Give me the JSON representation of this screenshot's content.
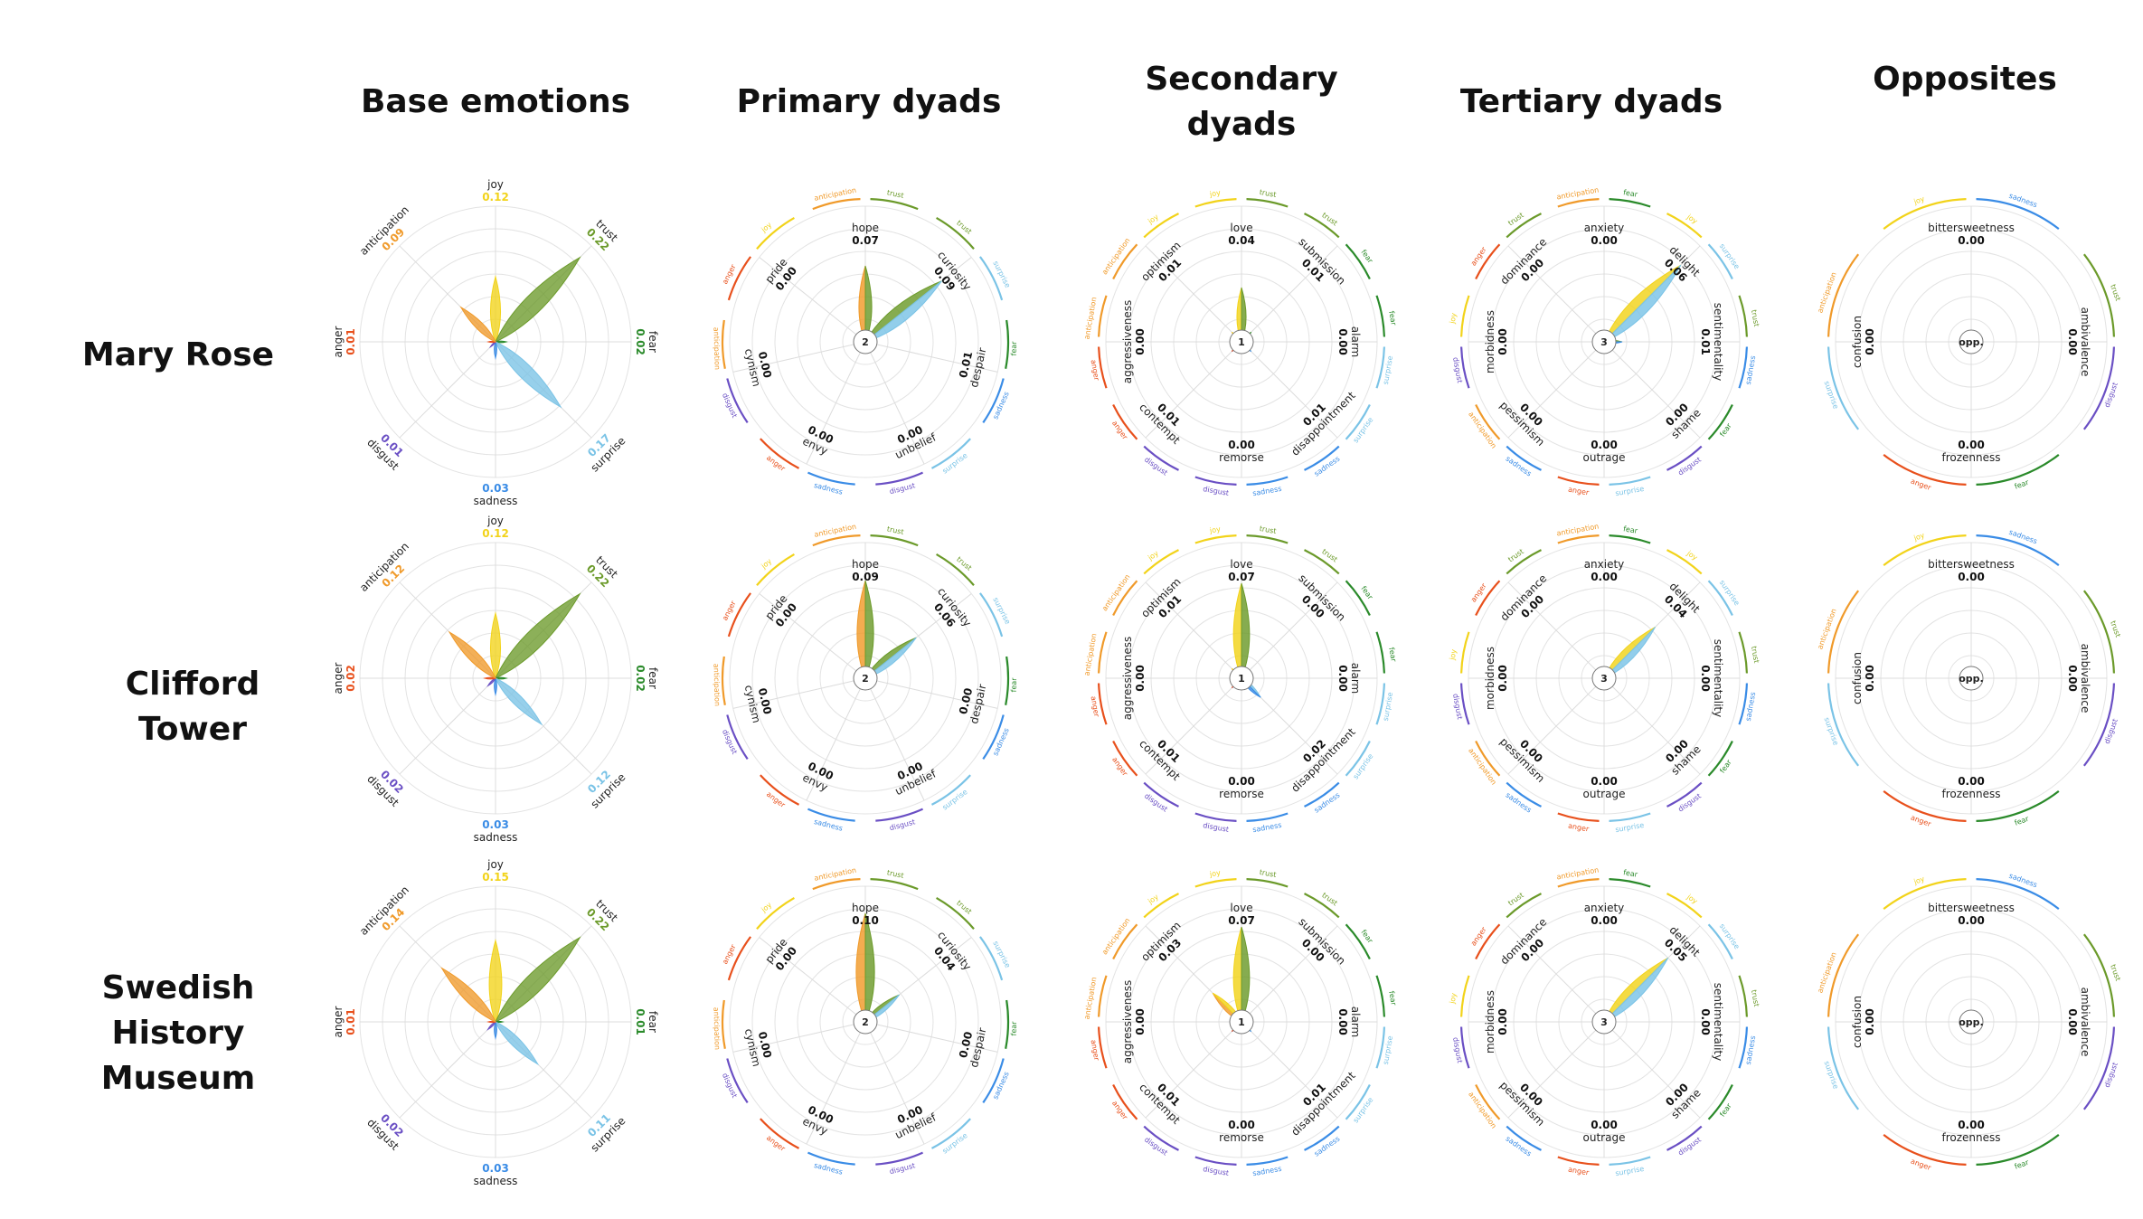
{
  "column_titles": [
    "Base emotions",
    "Primary dyads",
    "Secondary\ndyads",
    "Tertiary dyads",
    "Opposites"
  ],
  "row_titles": [
    "Mary Rose",
    "Clifford\nTower",
    "Swedish\nHistory\nMuseum"
  ],
  "colors": {
    "joy": "#f2d31a",
    "trust": "#6b9a2a",
    "fear": "#2a8a2a",
    "surprise": "#7ac3e6",
    "sadness": "#3a8ce6",
    "disgust": "#6a4fc4",
    "anger": "#e8501c",
    "anticipation": "#f09a2a"
  },
  "center_labels": [
    "",
    "2",
    "1",
    "3",
    "opp."
  ],
  "chart_data": [
    {
      "type": "radar",
      "panel": "Mary Rose / Base emotions",
      "labels": [
        "joy",
        "trust",
        "fear",
        "surprise",
        "sadness",
        "disgust",
        "anger",
        "anticipation"
      ],
      "values": [
        0.12,
        0.22,
        0.02,
        0.17,
        0.03,
        0.01,
        0.01,
        0.09
      ]
    },
    {
      "type": "radar",
      "panel": "Mary Rose / Primary dyads",
      "labels": [
        "hope",
        "curiosity",
        "despair",
        "unbelief",
        "envy",
        "cynism",
        "pride"
      ],
      "values": [
        0.07,
        0.09,
        0.01,
        0.0,
        0.0,
        0.0,
        0.0
      ]
    },
    {
      "type": "radar",
      "panel": "Mary Rose / Secondary dyads",
      "labels": [
        "love",
        "submission",
        "alarm",
        "disappointment",
        "remorse",
        "contempt",
        "aggressiveness",
        "optimism"
      ],
      "values": [
        0.04,
        0.01,
        0.0,
        0.01,
        0.0,
        0.01,
        0.0,
        0.01
      ]
    },
    {
      "type": "radar",
      "panel": "Mary Rose / Tertiary dyads",
      "labels": [
        "anxiety",
        "delight",
        "sentimentality",
        "shame",
        "outrage",
        "pessimism",
        "morbidness",
        "dominance"
      ],
      "values": [
        0.0,
        0.06,
        0.01,
        0.0,
        0.0,
        0.0,
        0.0,
        0.0
      ]
    },
    {
      "type": "radar",
      "panel": "Mary Rose / Opposites",
      "labels": [
        "bittersweetness",
        "ambivalence",
        "frozenness",
        "confusion"
      ],
      "values": [
        0.0,
        0.0,
        0.0,
        0.0
      ]
    },
    {
      "type": "radar",
      "panel": "Clifford Tower / Base emotions",
      "labels": [
        "joy",
        "trust",
        "fear",
        "surprise",
        "sadness",
        "disgust",
        "anger",
        "anticipation"
      ],
      "values": [
        0.12,
        0.22,
        0.02,
        0.12,
        0.03,
        0.02,
        0.02,
        0.12
      ]
    },
    {
      "type": "radar",
      "panel": "Clifford Tower / Primary dyads",
      "labels": [
        "hope",
        "curiosity",
        "despair",
        "unbelief",
        "envy",
        "cynism",
        "pride"
      ],
      "values": [
        0.09,
        0.06,
        0.0,
        0.0,
        0.0,
        0.0,
        0.0
      ]
    },
    {
      "type": "radar",
      "panel": "Clifford Tower / Secondary dyads",
      "labels": [
        "love",
        "submission",
        "alarm",
        "disappointment",
        "remorse",
        "contempt",
        "aggressiveness",
        "optimism"
      ],
      "values": [
        0.07,
        0.0,
        0.0,
        0.02,
        0.0,
        0.01,
        0.0,
        0.01
      ]
    },
    {
      "type": "radar",
      "panel": "Clifford Tower / Tertiary dyads",
      "labels": [
        "anxiety",
        "delight",
        "sentimentality",
        "shame",
        "outrage",
        "pessimism",
        "morbidness",
        "dominance"
      ],
      "values": [
        0.0,
        0.04,
        0.0,
        0.0,
        0.0,
        0.0,
        0.0,
        0.0
      ]
    },
    {
      "type": "radar",
      "panel": "Clifford Tower / Opposites",
      "labels": [
        "bittersweetness",
        "ambivalence",
        "frozenness",
        "confusion"
      ],
      "values": [
        0.0,
        0.0,
        0.0,
        0.0
      ]
    },
    {
      "type": "radar",
      "panel": "Swedish History Museum / Base emotions",
      "labels": [
        "joy",
        "trust",
        "fear",
        "surprise",
        "sadness",
        "disgust",
        "anger",
        "anticipation"
      ],
      "values": [
        0.15,
        0.22,
        0.01,
        0.11,
        0.03,
        0.02,
        0.01,
        0.14
      ]
    },
    {
      "type": "radar",
      "panel": "Swedish History Museum / Primary dyads",
      "labels": [
        "hope",
        "curiosity",
        "despair",
        "unbelief",
        "envy",
        "cynism",
        "pride"
      ],
      "values": [
        0.1,
        0.04,
        0.0,
        0.0,
        0.0,
        0.0,
        0.0
      ]
    },
    {
      "type": "radar",
      "panel": "Swedish History Museum / Secondary dyads",
      "labels": [
        "love",
        "submission",
        "alarm",
        "disappointment",
        "remorse",
        "contempt",
        "aggressiveness",
        "optimism"
      ],
      "values": [
        0.07,
        0.0,
        0.0,
        0.01,
        0.0,
        0.01,
        0.0,
        0.03
      ]
    },
    {
      "type": "radar",
      "panel": "Swedish History Museum / Tertiary dyads",
      "labels": [
        "anxiety",
        "delight",
        "sentimentality",
        "shame",
        "outrage",
        "pessimism",
        "morbidness",
        "dominance"
      ],
      "values": [
        0.0,
        0.05,
        0.0,
        0.0,
        0.0,
        0.0,
        0.0,
        0.0
      ]
    },
    {
      "type": "radar",
      "panel": "Swedish History Museum / Opposites",
      "labels": [
        "bittersweetness",
        "ambivalence",
        "frozenness",
        "confusion"
      ],
      "values": [
        0.0,
        0.0,
        0.0,
        0.0
      ]
    }
  ],
  "dyad_components": {
    "hope": [
      "anticipation",
      "trust"
    ],
    "curiosity": [
      "trust",
      "surprise"
    ],
    "despair": [
      "fear",
      "sadness"
    ],
    "unbelief": [
      "surprise",
      "disgust"
    ],
    "envy": [
      "sadness",
      "anger"
    ],
    "cynism": [
      "disgust",
      "anticipation"
    ],
    "pride": [
      "anger",
      "joy"
    ],
    "love": [
      "joy",
      "trust"
    ],
    "submission": [
      "trust",
      "fear"
    ],
    "alarm": [
      "fear",
      "surprise"
    ],
    "disappointment": [
      "surprise",
      "sadness"
    ],
    "remorse": [
      "sadness",
      "disgust"
    ],
    "contempt": [
      "disgust",
      "anger"
    ],
    "aggressiveness": [
      "anger",
      "anticipation"
    ],
    "optimism": [
      "anticipation",
      "joy"
    ],
    "anxiety": [
      "anticipation",
      "fear"
    ],
    "delight": [
      "joy",
      "surprise"
    ],
    "sentimentality": [
      "trust",
      "sadness"
    ],
    "shame": [
      "fear",
      "disgust"
    ],
    "outrage": [
      "surprise",
      "anger"
    ],
    "pessimism": [
      "sadness",
      "anticipation"
    ],
    "morbidness": [
      "disgust",
      "joy"
    ],
    "dominance": [
      "anger",
      "trust"
    ],
    "bittersweetness": [
      "joy",
      "sadness"
    ],
    "ambivalence": [
      "trust",
      "disgust"
    ],
    "frozenness": [
      "fear",
      "anger"
    ],
    "confusion": [
      "surprise",
      "anticipation"
    ]
  }
}
